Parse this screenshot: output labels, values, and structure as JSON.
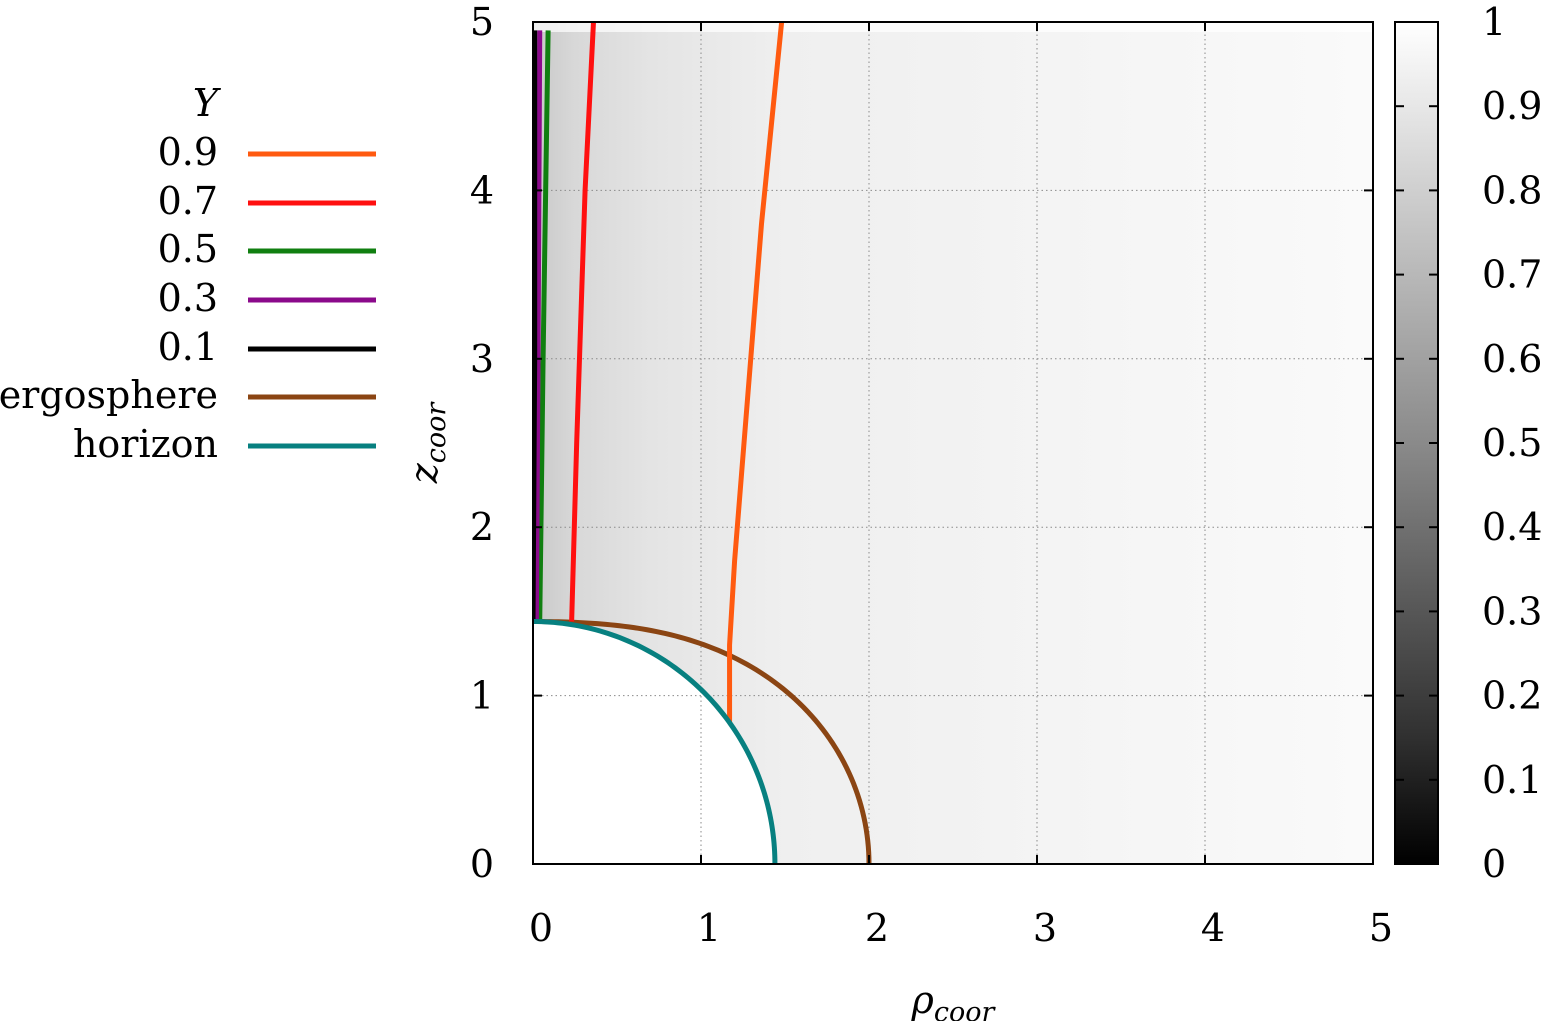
{
  "chart_data": {
    "type": "contour",
    "xlabel": "ρ",
    "xlabel_sub": "coor",
    "ylabel": "z",
    "ylabel_sub": "coor",
    "xlim": [
      0,
      5
    ],
    "ylim": [
      0,
      5
    ],
    "xticks": [
      "0",
      "1",
      "2",
      "3",
      "4",
      "5"
    ],
    "yticks": [
      "0",
      "1",
      "2",
      "3",
      "4",
      "5"
    ],
    "grid": true,
    "colorbar": {
      "range": [
        0,
        1
      ],
      "ticks": [
        "0",
        "0.1",
        "0.2",
        "0.3",
        "0.4",
        "0.5",
        "0.6",
        "0.7",
        "0.8",
        "0.9",
        "1"
      ],
      "colormap": "grayscale"
    },
    "legend": {
      "title": "Y",
      "position": "left-outside"
    },
    "series": [
      {
        "name": "0.9",
        "color": "#ff5a10",
        "points": [
          [
            1.17,
            0.84
          ],
          [
            1.17,
            1.3
          ],
          [
            1.2,
            1.8
          ],
          [
            1.28,
            2.8
          ],
          [
            1.36,
            3.8
          ],
          [
            1.48,
            5.0
          ]
        ]
      },
      {
        "name": "0.7",
        "color": "#ff1010",
        "points": [
          [
            0.23,
            1.44
          ],
          [
            0.26,
            2.5
          ],
          [
            0.31,
            4.0
          ],
          [
            0.36,
            5.0
          ]
        ]
      },
      {
        "name": "0.5",
        "color": "#107f10",
        "points": [
          [
            0.04,
            1.44
          ],
          [
            0.06,
            3.0
          ],
          [
            0.09,
            4.95
          ]
        ]
      },
      {
        "name": "0.3",
        "color": "#8b0a8b",
        "points": [
          [
            0.02,
            1.44
          ],
          [
            0.03,
            3.0
          ],
          [
            0.04,
            4.95
          ]
        ]
      },
      {
        "name": "0.1",
        "color": "#000000",
        "points": [
          [
            0.0,
            1.44
          ],
          [
            0.01,
            3.0
          ],
          [
            0.01,
            4.95
          ]
        ]
      },
      {
        "name": "ergosphere",
        "color": "#8b4513",
        "curve": "ergosphere",
        "rmin": 1.44,
        "rmax": 2.0
      },
      {
        "name": "horizon",
        "color": "#078080",
        "curve": "circle",
        "radius": 1.44
      }
    ]
  }
}
